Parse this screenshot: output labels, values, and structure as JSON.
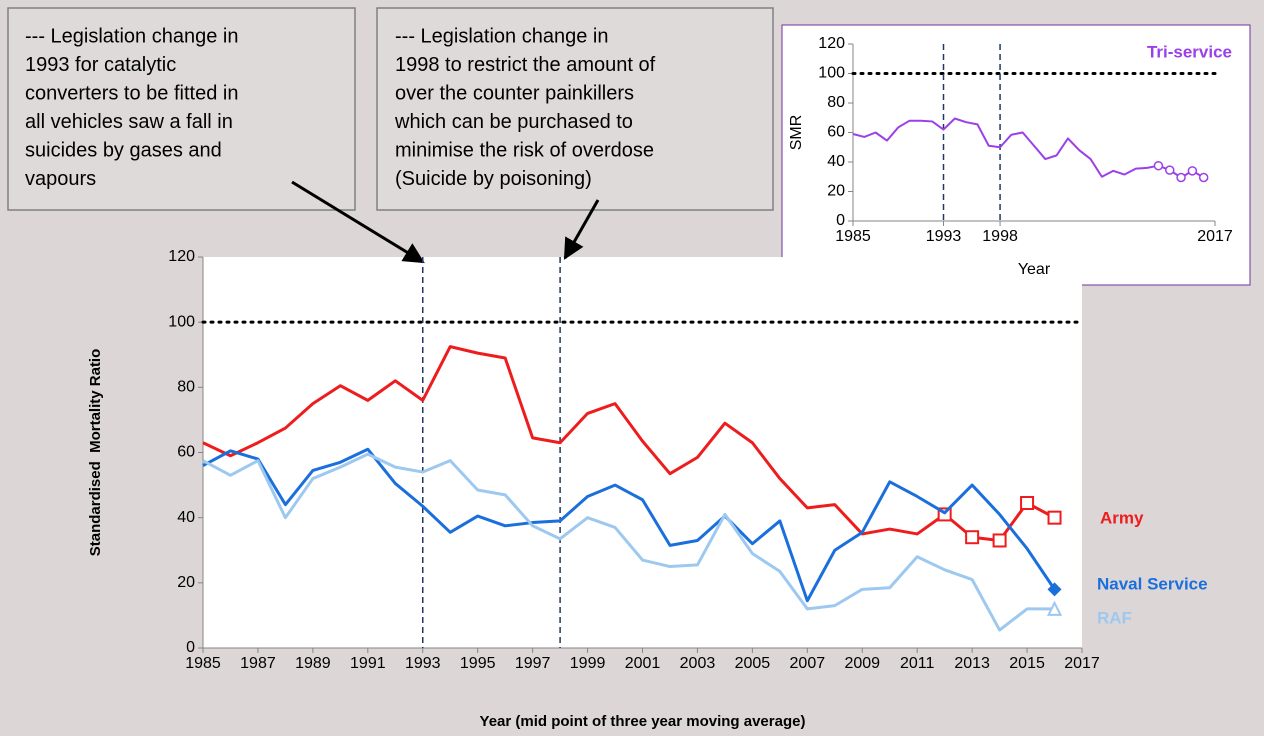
{
  "annotations": [
    {
      "lines": [
        "--- Legislation change in",
        "1993 for catalytic",
        "converters to be fitted in",
        "all vehicles saw a fall in",
        "suicides by gases and",
        "vapours"
      ]
    },
    {
      "lines": [
        "--- Legislation change in",
        "1998 to restrict the amount of",
        "over the counter painkillers",
        "which can be purchased to",
        "minimise the risk of overdose",
        "(Suicide by poisoning)"
      ]
    }
  ],
  "chart_data": [
    {
      "type": "line",
      "x": [
        1985,
        1986,
        1987,
        1988,
        1989,
        1990,
        1991,
        1992,
        1993,
        1994,
        1995,
        1996,
        1997,
        1998,
        1999,
        2000,
        2001,
        2002,
        2003,
        2004,
        2005,
        2006,
        2007,
        2008,
        2009,
        2010,
        2011,
        2012,
        2013,
        2014,
        2015,
        2016
      ],
      "xlim": [
        1985,
        2017
      ],
      "xticks": [
        1985,
        1987,
        1989,
        1991,
        1993,
        1995,
        1997,
        1999,
        2001,
        2003,
        2005,
        2007,
        2009,
        2011,
        2013,
        2015,
        2017
      ],
      "ylim": [
        0,
        120
      ],
      "yticks": [
        0,
        20,
        40,
        60,
        80,
        100,
        120
      ],
      "x_label": "Year (mid point of three year moving average)",
      "y_label": "Standardised  Mortality Ratio",
      "reference_line": 100,
      "vlines": [
        1993,
        1998
      ],
      "legend": "right",
      "series": [
        {
          "name": "Army",
          "color": "#ee1c1c",
          "marker": "square",
          "marker_from": 2012,
          "values": [
            63,
            59,
            63,
            67.5,
            75,
            80.5,
            76,
            82,
            76,
            92.5,
            90.5,
            89,
            64.5,
            63,
            72,
            75,
            63.5,
            53.5,
            58.5,
            69,
            63,
            52,
            43,
            44,
            35,
            36.5,
            35,
            41,
            34,
            33,
            44.5,
            40
          ]
        },
        {
          "name": "Naval Service",
          "color": "#1a6fdc",
          "marker": "diamond",
          "marker_from": 2016,
          "values": [
            56,
            60.5,
            58,
            44,
            54.5,
            57,
            61,
            50.5,
            43.5,
            35.5,
            40.5,
            37.5,
            38.5,
            39,
            46.5,
            50,
            45.5,
            31.5,
            33,
            40.5,
            32,
            39,
            14.5,
            30,
            35.5,
            51,
            46.5,
            41.5,
            50,
            41,
            30.5,
            18
          ]
        },
        {
          "name": "RAF",
          "color": "#9dc8f0",
          "marker": "triangle",
          "marker_from": 2016,
          "values": [
            57.5,
            53,
            57.5,
            40,
            52,
            55.5,
            59.5,
            55.5,
            54,
            57.5,
            48.5,
            47,
            37.5,
            33.5,
            40,
            37,
            27,
            25,
            25.5,
            41,
            29,
            23.5,
            12,
            13,
            18,
            18.5,
            28,
            24,
            21,
            5.5,
            12,
            12
          ]
        }
      ]
    },
    {
      "type": "line",
      "x": [
        1985,
        1986,
        1987,
        1988,
        1989,
        1990,
        1991,
        1992,
        1993,
        1994,
        1995,
        1996,
        1997,
        1998,
        1999,
        2000,
        2001,
        2002,
        2003,
        2004,
        2005,
        2006,
        2007,
        2008,
        2009,
        2010,
        2011,
        2012,
        2013,
        2014,
        2015,
        2016
      ],
      "xlim": [
        1985,
        2017
      ],
      "xticks": [
        1985,
        1993,
        1998,
        2017
      ],
      "ylim": [
        0,
        120
      ],
      "yticks": [
        0,
        20,
        40,
        60,
        80,
        100,
        120
      ],
      "x_label": "Year",
      "y_label": "SMR",
      "reference_line": 100,
      "vlines": [
        1993,
        1998
      ],
      "legend": "top-right",
      "series": [
        {
          "name": "Tri-service",
          "color": "#9b40e8",
          "marker": "circle",
          "marker_from": 2012,
          "values": [
            59,
            57,
            60,
            54.5,
            63.5,
            68,
            68,
            67.5,
            62,
            69.5,
            67,
            65.5,
            51,
            50,
            58.5,
            60,
            51,
            42,
            44.5,
            56,
            48,
            42,
            30,
            34,
            31.5,
            35.5,
            36,
            37.5,
            34.5,
            29.5,
            34,
            29.5
          ]
        }
      ]
    }
  ]
}
